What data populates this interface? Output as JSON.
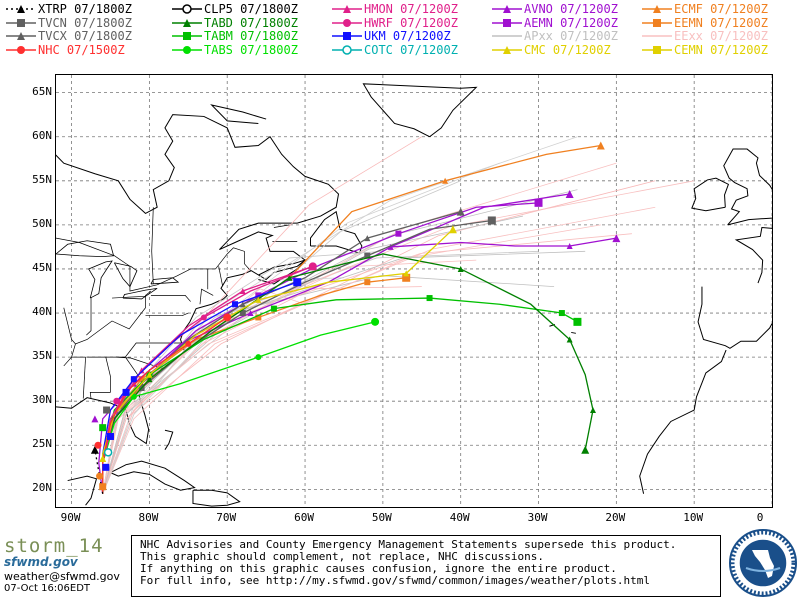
{
  "legend": [
    {
      "label": "XTRP 07/1800Z",
      "color": "#000000",
      "marker": "triangle",
      "line": "dotted"
    },
    {
      "label": "TVCN 07/1800Z",
      "color": "#606060",
      "marker": "square",
      "line": "solid"
    },
    {
      "label": "TVCX 07/1800Z",
      "color": "#606060",
      "marker": "triangle",
      "line": "solid"
    },
    {
      "label": "NHC 07/1500Z",
      "color": "#ff3030",
      "marker": "circle",
      "line": "solid"
    },
    {
      "label": "CLP5 07/1800Z",
      "color": "#000000",
      "marker": "open-circle",
      "line": "solid"
    },
    {
      "label": "TABD 07/1800Z",
      "color": "#008000",
      "marker": "triangle",
      "line": "solid"
    },
    {
      "label": "TABM 07/1800Z",
      "color": "#00c000",
      "marker": "square",
      "line": "solid"
    },
    {
      "label": "TABS 07/1800Z",
      "color": "#00e000",
      "marker": "circle",
      "line": "solid"
    },
    {
      "label": "HMON 07/1200Z",
      "color": "#e0208a",
      "marker": "triangle",
      "line": "solid"
    },
    {
      "label": "HWRF 07/1200Z",
      "color": "#e0208a",
      "marker": "circle",
      "line": "solid"
    },
    {
      "label": "UKM 07/1200Z",
      "color": "#1010ff",
      "marker": "square",
      "line": "solid"
    },
    {
      "label": "COTC 07/1200Z",
      "color": "#00b0b0",
      "marker": "open-circle",
      "line": "solid"
    },
    {
      "label": "AVNO 07/1200Z",
      "color": "#a010d0",
      "marker": "triangle",
      "line": "solid"
    },
    {
      "label": "AEMN 07/1200Z",
      "color": "#a010d0",
      "marker": "square",
      "line": "solid"
    },
    {
      "label": "APxx 07/1200Z",
      "color": "#c0c0c0",
      "marker": "none",
      "line": "solid"
    },
    {
      "label": "CMC 07/1200Z",
      "color": "#e0d000",
      "marker": "triangle",
      "line": "solid"
    },
    {
      "label": "ECMF 07/1200Z",
      "color": "#f08020",
      "marker": "triangle",
      "line": "solid"
    },
    {
      "label": "EEMN 07/1200Z",
      "color": "#f08020",
      "marker": "square",
      "line": "solid"
    },
    {
      "label": "EExx 07/1200Z",
      "color": "#f8c0c0",
      "marker": "none",
      "line": "solid"
    },
    {
      "label": "CEMN 07/1200Z",
      "color": "#e0d000",
      "marker": "square",
      "line": "solid"
    }
  ],
  "map": {
    "lat_labels": [
      "65N",
      "60N",
      "55N",
      "50N",
      "45N",
      "40N",
      "35N",
      "30N",
      "25N",
      "20N"
    ],
    "lon_labels": [
      "90W",
      "80W",
      "70W",
      "60W",
      "50W",
      "40W",
      "30W",
      "20W",
      "10W",
      "0"
    ],
    "lat_range": [
      18,
      67
    ],
    "lon_range": [
      -92,
      0
    ]
  },
  "tracks": {
    "origin": [
      -86.0,
      19.5
    ],
    "ECMF": {
      "color": "#f08020",
      "pts": [
        [
          -86,
          19.5
        ],
        [
          -86,
          23
        ],
        [
          -84.5,
          28.5
        ],
        [
          -80,
          32.5
        ],
        [
          -72,
          38
        ],
        [
          -62,
          44
        ],
        [
          -54,
          51.5
        ],
        [
          -42,
          55
        ],
        [
          -29,
          58
        ],
        [
          -22,
          59
        ]
      ]
    },
    "EEMN": {
      "color": "#f08020",
      "pts": [
        [
          -86,
          19.5
        ],
        [
          -86,
          23
        ],
        [
          -85,
          28
        ],
        [
          -81,
          32.5
        ],
        [
          -74,
          37
        ],
        [
          -66,
          39.5
        ],
        [
          -58,
          42
        ],
        [
          -52,
          43.5
        ],
        [
          -47,
          44
        ]
      ]
    },
    "AVNO": {
      "color": "#a010d0",
      "pts": [
        [
          -86,
          19.5
        ],
        [
          -86.5,
          23
        ],
        [
          -86,
          28
        ],
        [
          -82,
          32
        ],
        [
          -76,
          36.5
        ],
        [
          -67,
          40
        ],
        [
          -57,
          43.5
        ],
        [
          -49,
          47.5
        ],
        [
          -37,
          52
        ],
        [
          -26,
          53.5
        ]
      ]
    },
    "AVNO2": {
      "color": "#a010d0",
      "pts": [
        [
          -49,
          47.5
        ],
        [
          -40,
          48
        ],
        [
          -33,
          47.6
        ],
        [
          -26,
          47.6
        ],
        [
          -20,
          48.5
        ]
      ]
    },
    "AEMN": {
      "color": "#a010d0",
      "pts": [
        [
          -86,
          19.5
        ],
        [
          -86,
          24
        ],
        [
          -84,
          29
        ],
        [
          -80,
          33
        ],
        [
          -74,
          38
        ],
        [
          -66,
          42
        ],
        [
          -58,
          45.5
        ],
        [
          -48,
          49
        ],
        [
          -38,
          52
        ],
        [
          -30,
          52.5
        ]
      ]
    },
    "TVCN": {
      "color": "#606060",
      "pts": [
        [
          -86,
          19.5
        ],
        [
          -86,
          23
        ],
        [
          -85,
          27.5
        ],
        [
          -81,
          31.5
        ],
        [
          -75,
          36
        ],
        [
          -68,
          40
        ],
        [
          -60,
          43.5
        ],
        [
          -52,
          46.5
        ],
        [
          -44,
          49.5
        ],
        [
          -36,
          50.5
        ]
      ]
    },
    "TVCX": {
      "color": "#606060",
      "pts": [
        [
          -86,
          19.5
        ],
        [
          -86,
          23
        ],
        [
          -85,
          27.5
        ],
        [
          -81,
          32
        ],
        [
          -75,
          37
        ],
        [
          -68,
          41
        ],
        [
          -60,
          44
        ],
        [
          -52,
          48.5
        ],
        [
          -40,
          51.5
        ]
      ]
    },
    "TABM": {
      "color": "#00c000",
      "pts": [
        [
          -86,
          19.5
        ],
        [
          -86,
          24
        ],
        [
          -84.5,
          29
        ],
        [
          -80,
          33
        ],
        [
          -73,
          37
        ],
        [
          -64,
          40.5
        ],
        [
          -56,
          41.5
        ],
        [
          -44,
          41.7
        ],
        [
          -35,
          41
        ],
        [
          -27,
          40
        ],
        [
          -25,
          39
        ]
      ]
    },
    "TABD": {
      "color": "#008000",
      "pts": [
        [
          -86,
          19.5
        ],
        [
          -86,
          23
        ],
        [
          -84.5,
          28
        ],
        [
          -80,
          32.5
        ],
        [
          -72,
          38
        ],
        [
          -62,
          44
        ],
        [
          -50,
          46.7
        ],
        [
          -40,
          45
        ],
        [
          -31,
          41
        ],
        [
          -26,
          37
        ],
        [
          -24,
          33
        ],
        [
          -23,
          29
        ],
        [
          -24,
          24.5
        ]
      ]
    },
    "TABS": {
      "color": "#00e000",
      "pts": [
        [
          -86,
          19.5
        ],
        [
          -86,
          23
        ],
        [
          -84.5,
          27.5
        ],
        [
          -82,
          30.5
        ],
        [
          -76,
          32
        ],
        [
          -66,
          35
        ],
        [
          -58,
          37.5
        ],
        [
          -51,
          39
        ]
      ]
    },
    "HMON": {
      "color": "#e0208a",
      "pts": [
        [
          -86,
          19.5
        ],
        [
          -86,
          23
        ],
        [
          -84.5,
          28.5
        ],
        [
          -81,
          33.5
        ],
        [
          -75,
          38.5
        ],
        [
          -68,
          42.5
        ],
        [
          -59,
          45.3
        ]
      ]
    },
    "HWRF": {
      "color": "#e0208a",
      "pts": [
        [
          -86,
          19.5
        ],
        [
          -86,
          23
        ],
        [
          -85,
          28
        ],
        [
          -82,
          32.5
        ],
        [
          -78,
          36
        ],
        [
          -73,
          39.5
        ],
        [
          -67,
          42.5
        ],
        [
          -59,
          45.3
        ]
      ]
    },
    "UKM": {
      "color": "#1010ff",
      "pts": [
        [
          -86,
          19.5
        ],
        [
          -86,
          24
        ],
        [
          -85,
          29
        ],
        [
          -82,
          32.5
        ],
        [
          -76,
          37.5
        ],
        [
          -69,
          41
        ],
        [
          -61,
          43.5
        ]
      ]
    },
    "CMC": {
      "color": "#e0d000",
      "pts": [
        [
          -86,
          19.5
        ],
        [
          -86,
          24
        ],
        [
          -84.5,
          28.5
        ],
        [
          -80,
          33
        ],
        [
          -74,
          37.5
        ],
        [
          -66,
          41.5
        ],
        [
          -57,
          43.5
        ],
        [
          -47,
          44.5
        ],
        [
          -41,
          49.5
        ]
      ]
    },
    "NHC": {
      "color": "#ff3030",
      "pts": [
        [
          -86,
          19.5
        ],
        [
          -86,
          23
        ],
        [
          -85,
          27.5
        ],
        [
          -83,
          31
        ],
        [
          -80,
          33.5
        ],
        [
          -75,
          36.5
        ],
        [
          -70,
          39.5
        ]
      ]
    },
    "XTRP": {
      "color": "#000000",
      "pts": [
        [
          -86,
          19.5
        ],
        [
          -86.5,
          22
        ],
        [
          -87,
          24.5
        ]
      ]
    }
  },
  "footer": {
    "brand_name": "storm_14",
    "brand_site": "sfwmd.gov",
    "email": "weather@sfwmd.gov",
    "timestamp": "07-Oct 16:06EDT",
    "disclaimer": [
      "NHC Advisories and County Emergency Management Statements supersede this product.",
      "This graphic should complement, not replace, NHC discussions.",
      "If anything on this graphic causes confusion, ignore the entire product.",
      "For full info, see  http://my.sfwmd.gov/sfwmd/common/images/weather/plots.html"
    ],
    "seal_text": "SOUTH FLORIDA WATER MANAGEMENT DISTRICT"
  }
}
